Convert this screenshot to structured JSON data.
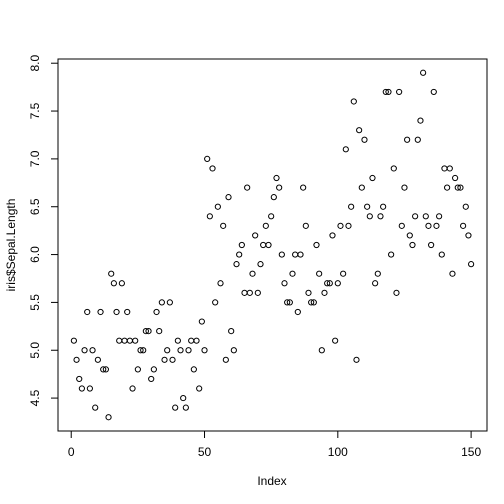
{
  "chart_data": {
    "type": "scatter",
    "x_label": "Index",
    "y_label": "iris$Sepal.Length",
    "x": [
      1,
      2,
      3,
      4,
      5,
      6,
      7,
      8,
      9,
      10,
      11,
      12,
      13,
      14,
      15,
      16,
      17,
      18,
      19,
      20,
      21,
      22,
      23,
      24,
      25,
      26,
      27,
      28,
      29,
      30,
      31,
      32,
      33,
      34,
      35,
      36,
      37,
      38,
      39,
      40,
      41,
      42,
      43,
      44,
      45,
      46,
      47,
      48,
      49,
      50,
      51,
      52,
      53,
      54,
      55,
      56,
      57,
      58,
      59,
      60,
      61,
      62,
      63,
      64,
      65,
      66,
      67,
      68,
      69,
      70,
      71,
      72,
      73,
      74,
      75,
      76,
      77,
      78,
      79,
      80,
      81,
      82,
      83,
      84,
      85,
      86,
      87,
      88,
      89,
      90,
      91,
      92,
      93,
      94,
      95,
      96,
      97,
      98,
      99,
      100,
      101,
      102,
      103,
      104,
      105,
      106,
      107,
      108,
      109,
      110,
      111,
      112,
      113,
      114,
      115,
      116,
      117,
      118,
      119,
      120,
      121,
      122,
      123,
      124,
      125,
      126,
      127,
      128,
      129,
      130,
      131,
      132,
      133,
      134,
      135,
      136,
      137,
      138,
      139,
      140,
      141,
      142,
      143,
      144,
      145,
      146,
      147,
      148,
      149,
      150
    ],
    "values": [
      5.1,
      4.9,
      4.7,
      4.6,
      5.0,
      5.4,
      4.6,
      5.0,
      4.4,
      4.9,
      5.4,
      4.8,
      4.8,
      4.3,
      5.8,
      5.7,
      5.4,
      5.1,
      5.7,
      5.1,
      5.4,
      5.1,
      4.6,
      5.1,
      4.8,
      5.0,
      5.0,
      5.2,
      5.2,
      4.7,
      4.8,
      5.4,
      5.2,
      5.5,
      4.9,
      5.0,
      5.5,
      4.9,
      4.4,
      5.1,
      5.0,
      4.5,
      4.4,
      5.0,
      5.1,
      4.8,
      5.1,
      4.6,
      5.3,
      5.0,
      7.0,
      6.4,
      6.9,
      5.5,
      6.5,
      5.7,
      6.3,
      4.9,
      6.6,
      5.2,
      5.0,
      5.9,
      6.0,
      6.1,
      5.6,
      6.7,
      5.6,
      5.8,
      6.2,
      5.6,
      5.9,
      6.1,
      6.3,
      6.1,
      6.4,
      6.6,
      6.8,
      6.7,
      6.0,
      5.7,
      5.5,
      5.5,
      5.8,
      6.0,
      5.4,
      6.0,
      6.7,
      6.3,
      5.6,
      5.5,
      5.5,
      6.1,
      5.8,
      5.0,
      5.6,
      5.7,
      5.7,
      6.2,
      5.1,
      5.7,
      6.3,
      5.8,
      7.1,
      6.3,
      6.5,
      7.6,
      4.9,
      7.3,
      6.7,
      7.2,
      6.5,
      6.4,
      6.8,
      5.7,
      5.8,
      6.4,
      6.5,
      7.7,
      7.7,
      6.0,
      6.9,
      5.6,
      7.7,
      6.3,
      6.7,
      7.2,
      6.2,
      6.1,
      6.4,
      7.2,
      7.4,
      7.9,
      6.4,
      6.3,
      6.1,
      7.7,
      6.3,
      6.4,
      6.0,
      6.9,
      6.7,
      6.9,
      5.8,
      6.8,
      6.7,
      6.7,
      6.3,
      6.5,
      6.2,
      5.9
    ],
    "color": "#000000",
    "xlim": [
      -4.96,
      155.96
    ],
    "xticks": [
      0,
      50,
      100,
      150
    ],
    "ylim": [
      4.156,
      8.044
    ],
    "yticks": [
      4.5,
      {
        "value": 5,
        "label": "5.0"
      },
      5.5,
      {
        "value": 6,
        "label": "6.0"
      },
      6.5,
      {
        "value": 7,
        "label": "7.0"
      },
      7.5,
      {
        "value": 8,
        "label": "8.0"
      }
    ]
  }
}
